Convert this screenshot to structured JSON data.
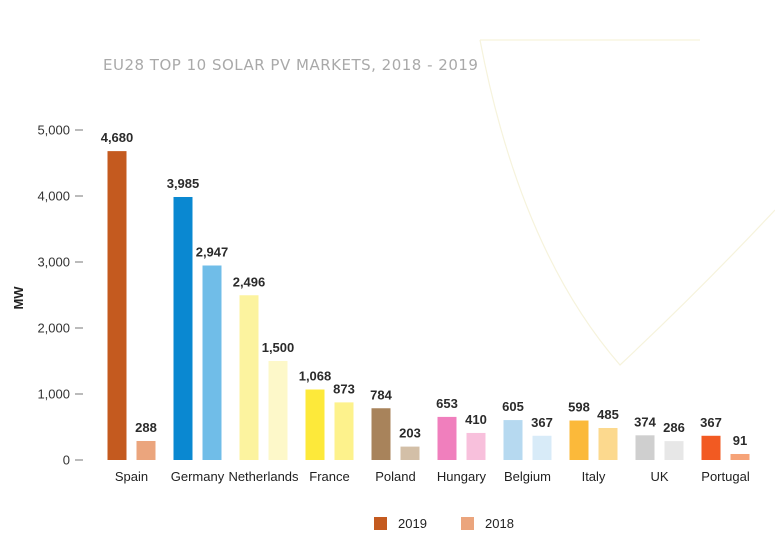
{
  "chart_data": {
    "type": "bar",
    "title": "EU28 TOP 10 SOLAR PV MARKETS, 2018 - 2019",
    "ylabel": "MW",
    "xlabel": "",
    "ylim": [
      0,
      5000
    ],
    "yticks": [
      0,
      1000,
      2000,
      3000,
      4000,
      5000
    ],
    "ytick_labels": [
      "0",
      "1,000",
      "2,000",
      "3,000",
      "4,000",
      "5,000"
    ],
    "categories": [
      "Spain",
      "Germany",
      "Netherlands",
      "France",
      "Poland",
      "Hungary",
      "Belgium",
      "Italy",
      "UK",
      "Portugal"
    ],
    "series": [
      {
        "name": "2019",
        "values": [
          4680,
          3985,
          2496,
          1068,
          784,
          653,
          605,
          598,
          374,
          367
        ],
        "labels": [
          "4,680",
          "3,985",
          "2,496",
          "1,068",
          "784",
          "653",
          "605",
          "598",
          "374",
          "367"
        ],
        "colors": [
          "#c45a1f",
          "#0a88d1",
          "#fcf39f",
          "#fde93a",
          "#a8835b",
          "#f07fbd",
          "#b6d9f0",
          "#fbb93a",
          "#cfcfcf",
          "#f25a22"
        ]
      },
      {
        "name": "2018",
        "values": [
          288,
          2947,
          1500,
          873,
          203,
          410,
          367,
          485,
          286,
          91
        ],
        "labels": [
          "288",
          "2,947",
          "1,500",
          "873",
          "203",
          "410",
          "367",
          "485",
          "286",
          "91"
        ],
        "colors": [
          "#eba57d",
          "#70bde8",
          "#fdf8c9",
          "#fdf28c",
          "#d3bfa7",
          "#f8c0dc",
          "#d8ebf8",
          "#fcd98e",
          "#e7e7e7",
          "#f6a378"
        ]
      }
    ],
    "legend": {
      "placement": "bottom-center",
      "items": [
        {
          "label": "2019",
          "color": "#c45a1f"
        },
        {
          "label": "2018",
          "color": "#eba57d"
        }
      ]
    },
    "grid": false
  }
}
